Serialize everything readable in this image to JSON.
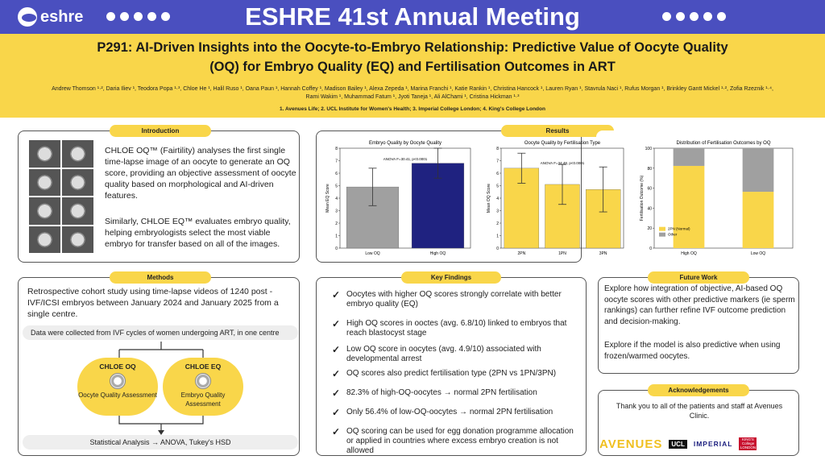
{
  "header": {
    "logo_text": "eshre",
    "title": "ESHRE 41st Annual Meeting",
    "left_dots": 5,
    "right_dots": 5
  },
  "paper": {
    "title_line1": "P291: AI-Driven Insights into the Oocyte-to-Embryo Relationship: Predictive Value of Oocyte Quality",
    "title_line2": "(OQ) for Embryo Quality (EQ) and Fertilisation Outcomes in ART",
    "authors": "Andrew Thomson ¹·², Daria Iliev ¹, Teodora Popa ¹·³, Chloe He ¹, Halil Ruso ¹, Oana Paun ¹, Hannah Coffey ¹, Madison Bailey ¹, Alexa Zepeda ¹, Marina Franchi ¹, Katie Rankin ¹, Christina Hancock ¹, Lauren Ryan ¹, Stavrula Naci ¹, Rufus Morgan ¹, Brinkley Gantt Mickel ¹·², Zofia Rzeznik ¹·⁴, Rami Wakim ¹, Muhammad Fatum ¹, Jyoti Taneja ¹, Ali AlChami ¹, Cristina Hickman ¹·³",
    "affiliations": "1. Avenues Life; 2. UCL Institute for Women's Health; 3. Imperial College London; 4. King's College London"
  },
  "colors": {
    "blue": "#4a4fbf",
    "yellow": "#f9d64a",
    "grey": "#a0a0a0",
    "navy": "#1f2280"
  },
  "introduction": {
    "heading": "Introduction",
    "para1": "CHLOE OQ™ (Fairtility) analyses the first single time-lapse image of an oocyte to generate an OQ score, providing an objective assessment of oocyte quality based on morphological and AI-driven features.",
    "para2": "Similarly, CHLOE EQ™ evaluates embryo quality, helping embryologists select the most viable embryo for transfer based on all of the images."
  },
  "results": {
    "heading": "Results"
  },
  "chart_data": [
    {
      "type": "bar",
      "title": "Embryo Quality by Oocyte Quality",
      "categories": [
        "Low OQ",
        "High OQ"
      ],
      "values": [
        4.9,
        6.8
      ],
      "errors": [
        1.5,
        1.2
      ],
      "ylabel": "Mean EQ Score",
      "ylim": [
        0,
        8
      ],
      "yticks": [
        "0",
        "1",
        "2",
        "3",
        "4",
        "5",
        "6",
        "7",
        "8"
      ],
      "annotation": "ANOVA F=30.41, p<0.0001"
    },
    {
      "type": "bar",
      "title": "Oocyte Quality by Fertilisation Type",
      "categories": [
        "2PN",
        "1PN",
        "3PN"
      ],
      "values": [
        6.4,
        5.1,
        4.7
      ],
      "errors": [
        1.2,
        1.6,
        1.8
      ],
      "ylabel": "Mean OQ Score",
      "ylim": [
        0,
        8
      ],
      "yticks": [
        "0",
        "1",
        "2",
        "3",
        "4",
        "5",
        "6",
        "7",
        "8"
      ],
      "annotation": "ANOVA F=34.48, p<0.0001"
    },
    {
      "type": "bar",
      "title": "Distribution of Fertilisation Outcomes by OQ",
      "categories": [
        "High OQ",
        "Low OQ"
      ],
      "series": [
        {
          "name": "2PN (Normal)",
          "values": [
            82.3,
            56.4
          ]
        },
        {
          "name": "Other",
          "values": [
            17.7,
            43.6
          ]
        }
      ],
      "ylabel": "Fertilisation Outcome (%)",
      "ylim": [
        0,
        100
      ],
      "yticks": [
        "0",
        "20",
        "40",
        "60",
        "80",
        "100"
      ],
      "legend": "bottom-left"
    }
  ],
  "methods": {
    "heading": "Methods",
    "text": "Retrospective cohort study using time-lapse videos of 1240 post - IVF/ICSI embryos between January 2024 and January 2025 from a single centre.",
    "data_box": "Data were collected from IVF cycles of women undergoing ART, in one centre",
    "oq_title": "CHLOE OQ",
    "oq_label": "Oocyte Quality Assessment",
    "eq_title": "CHLOE EQ",
    "eq_label": "Embryo Quality Assessment",
    "stats": "Statistical Analysis → ANOVA, Tukey's HSD"
  },
  "key_findings": {
    "heading": "Key Findings",
    "items": [
      "Oocytes with higher OQ scores strongly correlate with better embryo quality (EQ)",
      "High OQ scores in ooctes (avg. 6.8/10) linked to embryos that reach blastocyst stage",
      "Low OQ score in oocytes (avg. 4.9/10) associated with developmental arrest",
      "OQ scores also predict fertilisation type (2PN vs 1PN/3PN)",
      "82.3% of high-OQ-oocytes → normal 2PN fertilisation",
      "Only 56.4% of low-OQ-oocytes → normal 2PN fertilisation",
      "OQ scoring can be used for egg donation programme allocation or applied in countries where excess embryo creation is not allowed"
    ]
  },
  "future_work": {
    "heading": "Future Work",
    "para1": "Explore how integration of objective, AI-based OQ oocyte scores with other predictive markers (ie sperm rankings) can further refine IVF outcome prediction and decision-making.",
    "para2": "Explore if the model is also predictive when using frozen/warmed oocytes."
  },
  "acknowledgements": {
    "heading": "Acknowledgements",
    "text": "Thank you to all of the patients and staff at Avenues Clinic.",
    "logos": [
      "AVENUES",
      "UCL",
      "IMPERIAL",
      "KING'S College LONDON"
    ]
  }
}
